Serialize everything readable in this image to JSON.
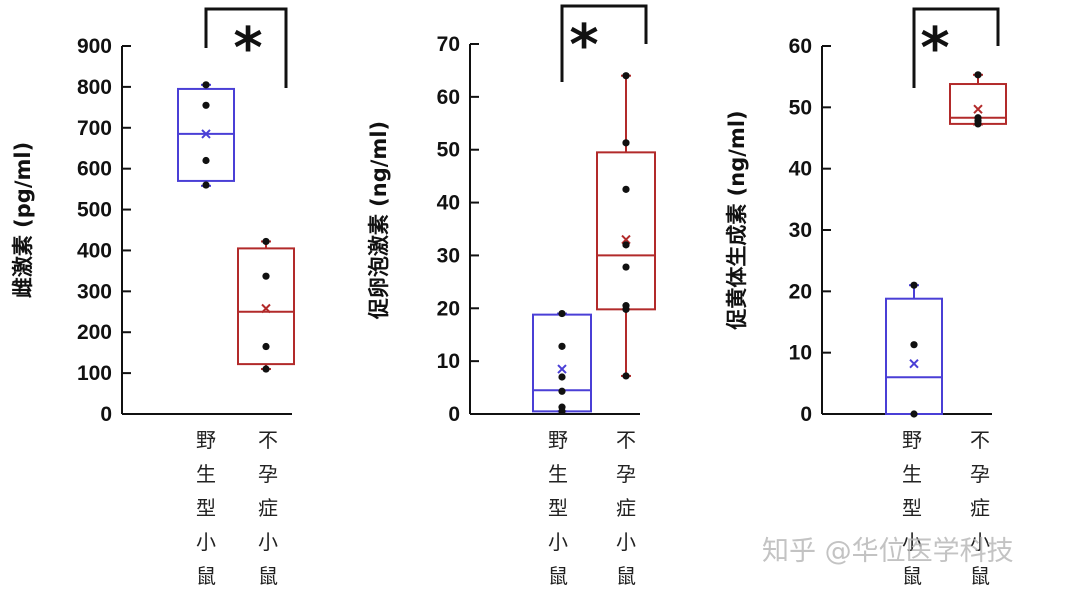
{
  "chart_data": [
    {
      "type": "box",
      "ylabel": "雌激素 (pg/ml)",
      "ylim": [
        0,
        900
      ],
      "yticks": [
        0,
        100,
        200,
        300,
        400,
        500,
        600,
        700,
        800,
        900
      ],
      "categories": [
        "野生型小鼠",
        "不孕症小鼠"
      ],
      "significance": "*",
      "series": [
        {
          "color": "#4a3fd6",
          "box": {
            "whisker_low": 558,
            "q1": 570,
            "median": 685,
            "q3": 795,
            "whisker_high": 805
          },
          "mean": 685,
          "points": [
            805,
            755,
            620,
            560
          ]
        },
        {
          "color": "#b22a2a",
          "box": {
            "whisker_low": 110,
            "q1": 122,
            "median": 250,
            "q3": 405,
            "whisker_high": 422
          },
          "mean": 258,
          "points": [
            422,
            337,
            165,
            110
          ]
        }
      ]
    },
    {
      "type": "box",
      "ylabel": "促卵泡激素 (ng/ml)",
      "ylim": [
        0,
        70
      ],
      "yticks": [
        0,
        10,
        20,
        30,
        40,
        50,
        60,
        70
      ],
      "categories": [
        "野生型小鼠",
        "不孕症小鼠"
      ],
      "significance": "*",
      "series": [
        {
          "color": "#4a3fd6",
          "box": {
            "whisker_low": 0.5,
            "q1": 0.5,
            "median": 4.5,
            "q3": 18.8,
            "whisker_high": 19
          },
          "mean": 8.5,
          "points": [
            19,
            12.8,
            7,
            4.3,
            1.3,
            0.5
          ]
        },
        {
          "color": "#b22a2a",
          "box": {
            "whisker_low": 7.2,
            "q1": 19.8,
            "median": 30,
            "q3": 49.5,
            "whisker_high": 64
          },
          "mean": 33,
          "points": [
            64,
            51.3,
            42.5,
            32,
            27.8,
            20.5,
            19.8,
            7.2
          ]
        }
      ]
    },
    {
      "type": "box",
      "ylabel": "促黄体生成素 (ng/ml)",
      "ylim": [
        0,
        60
      ],
      "yticks": [
        0,
        10,
        20,
        30,
        40,
        50,
        60
      ],
      "categories": [
        "野生型小鼠",
        "不孕症小鼠"
      ],
      "significance": "*",
      "series": [
        {
          "color": "#4a3fd6",
          "box": {
            "whisker_low": 0,
            "q1": 0,
            "median": 6,
            "q3": 18.8,
            "whisker_high": 21
          },
          "mean": 8.2,
          "points": [
            21,
            11.3,
            0
          ]
        },
        {
          "color": "#b22a2a",
          "box": {
            "whisker_low": 47.2,
            "q1": 47.3,
            "median": 48.3,
            "q3": 53.8,
            "whisker_high": 55.3
          },
          "mean": 49.7,
          "points": [
            55.3,
            48.3,
            47.8,
            47.3
          ]
        }
      ]
    }
  ],
  "watermark": "知乎 @华位医学科技"
}
